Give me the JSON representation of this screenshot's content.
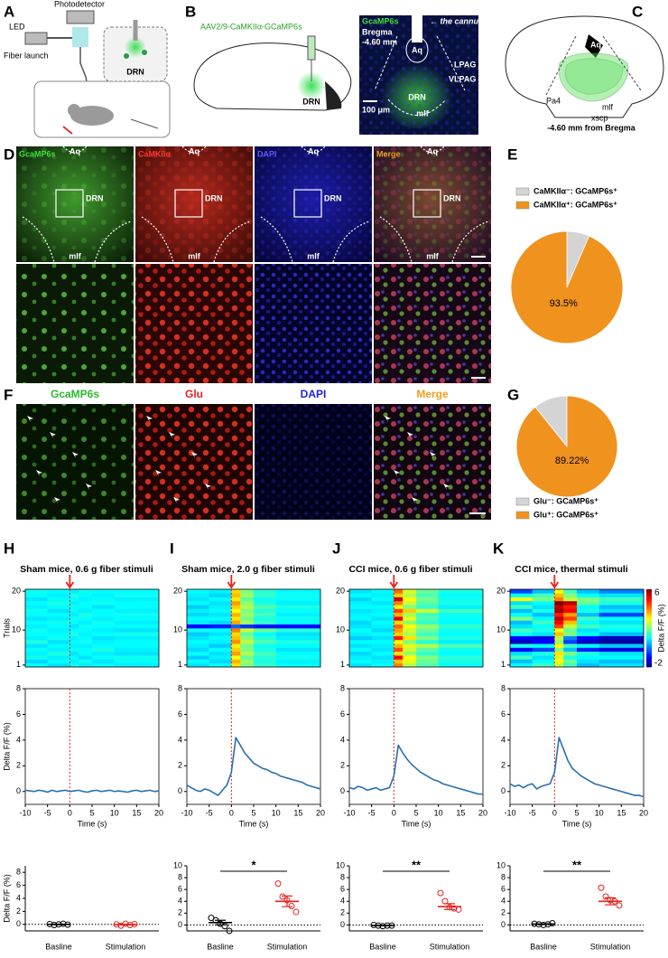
{
  "figure": {
    "panel_labels": [
      "A",
      "B",
      "C",
      "D",
      "E",
      "F",
      "G",
      "H",
      "I",
      "J",
      "K"
    ],
    "a": {
      "photodetector": "Photodetector",
      "led": "LED",
      "fiber_launch": "Fiber launch",
      "drn": "DRN"
    },
    "b": {
      "virus": "AAV2/9-CaMKIIα-GCaMP6s",
      "drn": "DRN",
      "stain": "GcaMP6s",
      "bregma": "Bregma",
      "level": "-4.60 mm",
      "cannula": "← the cannula",
      "aq": "Aq",
      "lpag": "LPAG",
      "vlpag": "VLPAG",
      "mlf": "mlf",
      "scale": "100 μm"
    },
    "c": {
      "aq": "Aq",
      "pa4": "Pa4",
      "mlf": "mlf",
      "xscp": "xscp",
      "level": "-4.60 mm from Bregma"
    },
    "d": {
      "channels": [
        "GcaMP6s",
        "CaMKIIα",
        "DAPI",
        "Merge"
      ],
      "aq": "Aq",
      "drn": "DRN",
      "mlf": "mlf"
    },
    "f": {
      "channels": [
        "GcaMP6s",
        "Glu",
        "DAPI",
        "Merge"
      ]
    }
  },
  "chart_data": [
    {
      "type": "pie",
      "categories": [
        "CaMKIIα⁻: GCaMP6s⁺",
        "CaMKIIα⁺: GCaMP6s⁺"
      ],
      "values": [
        6.5,
        93.5
      ],
      "value_labels": [
        null,
        "93.5%"
      ],
      "colors": [
        "#d4d4d4",
        "#f0921e"
      ],
      "direction": "clockwise"
    },
    {
      "type": "pie",
      "categories": [
        "Glu⁻: GCaMP6s⁺",
        "Glu⁺: GCaMP6s⁺"
      ],
      "values": [
        10.78,
        89.22
      ],
      "value_labels": [
        null,
        "89.22%"
      ],
      "colors": [
        "#d4d4d4",
        "#f0921e"
      ],
      "direction": "counterclockwise"
    },
    {
      "type": "heatmap",
      "title": "Sham mice, 0.6 g fiber stimuli",
      "y_label": "Trials",
      "ylim": [
        1,
        20
      ],
      "yticks": [
        1,
        10,
        20
      ],
      "xlim": [
        -10,
        20
      ],
      "xbins": [
        -10,
        -5,
        0,
        2,
        5,
        10,
        20
      ],
      "zlim": [
        -2,
        6
      ],
      "stimulus_x": 0,
      "z": [
        [
          1,
          0.8,
          1.1,
          0.9,
          1,
          0.9
        ],
        [
          0.7,
          1,
          0.9,
          1.1,
          0.8,
          1
        ],
        [
          1.1,
          0.9,
          1,
          0.8,
          1,
          1.1
        ],
        [
          0.9,
          1.2,
          0.8,
          1,
          0.9,
          0.8
        ],
        [
          1,
          0.9,
          1.1,
          1,
          1.2,
          0.9
        ],
        [
          0.8,
          1,
          0.9,
          0.9,
          1,
          1
        ],
        [
          1.2,
          0.8,
          1,
          1.1,
          0.9,
          1
        ],
        [
          0.9,
          1.1,
          0.9,
          1,
          0.8,
          0.9
        ],
        [
          1,
          1,
          1.2,
          0.9,
          1,
          1.1
        ],
        [
          1.1,
          0.9,
          1,
          1,
          0.9,
          0.8
        ],
        [
          0.9,
          1,
          0.8,
          1.1,
          1,
          1
        ],
        [
          1,
          1.1,
          1,
          0.9,
          1.1,
          0.9
        ],
        [
          0.8,
          0.9,
          1.1,
          1,
          0.9,
          1
        ],
        [
          1,
          1,
          0.9,
          1.2,
          1,
          1.1
        ],
        [
          1.1,
          0.8,
          1,
          0.9,
          1,
          0.9
        ],
        [
          0.9,
          1,
          1.1,
          1,
          0.8,
          1
        ],
        [
          1,
          1.2,
          0.9,
          1,
          1.1,
          1
        ],
        [
          0.8,
          1,
          1,
          0.9,
          1,
          0.9
        ],
        [
          1,
          0.9,
          1.2,
          1,
          0.9,
          1.1
        ],
        [
          1.1,
          1,
          0.9,
          1.1,
          1,
          1
        ]
      ]
    },
    {
      "type": "heatmap",
      "title": "Sham mice, 2.0 g fiber stimuli",
      "ylim": [
        1,
        20
      ],
      "yticks": [
        1,
        10,
        20
      ],
      "xlim": [
        -10,
        20
      ],
      "xbins": [
        -10,
        -5,
        0,
        2,
        5,
        10,
        20
      ],
      "zlim": [
        -2,
        6
      ],
      "stimulus_x": 0,
      "z": [
        [
          0.8,
          1,
          3.2,
          2,
          1.4,
          1
        ],
        [
          1,
          0.7,
          3.6,
          2.2,
          1.2,
          0.9
        ],
        [
          0.6,
          0.9,
          3,
          1.8,
          1.3,
          1.1
        ],
        [
          1,
          0.8,
          3.8,
          2.4,
          1.5,
          1
        ],
        [
          0.7,
          1,
          3.4,
          2,
          1.2,
          0.8
        ],
        [
          0.9,
          0.6,
          3.1,
          1.9,
          1.1,
          1
        ],
        [
          1,
          0.9,
          3.9,
          2.5,
          1.6,
          1.2
        ],
        [
          0.8,
          1,
          3.5,
          2.1,
          1.3,
          0.9
        ],
        [
          0.6,
          0.8,
          3.3,
          1.7,
          1,
          0.8
        ],
        [
          1.1,
          1,
          4,
          2.6,
          1.8,
          1.3
        ],
        [
          -1,
          -0.8,
          -0.2,
          -0.6,
          -0.9,
          -1
        ],
        [
          0.9,
          0.7,
          3.7,
          2.3,
          1.4,
          1
        ],
        [
          1,
          1,
          3.2,
          1.9,
          1.2,
          1.1
        ],
        [
          0.7,
          0.8,
          3.6,
          2.2,
          1.5,
          0.9
        ],
        [
          0.9,
          1,
          3,
          2,
          1.3,
          1
        ],
        [
          0.6,
          0.9,
          3.4,
          2.4,
          1.6,
          1.2
        ],
        [
          1,
          0.8,
          3.8,
          2.1,
          1.2,
          0.9
        ],
        [
          0.8,
          1,
          3.1,
          1.8,
          1.1,
          1
        ],
        [
          0.9,
          0.7,
          3.5,
          2.2,
          1.4,
          1.1
        ],
        [
          1,
          0.9,
          3.3,
          2,
          1.3,
          1
        ]
      ]
    },
    {
      "type": "heatmap",
      "title": "CCI mice, 0.6 g fiber stimuli",
      "ylim": [
        1,
        20
      ],
      "yticks": [
        1,
        10,
        20
      ],
      "xlim": [
        -10,
        20
      ],
      "xbins": [
        -10,
        -5,
        0,
        2,
        5,
        10,
        20
      ],
      "zlim": [
        -2,
        6
      ],
      "stimulus_x": 0,
      "z": [
        [
          0.8,
          1,
          4,
          2.4,
          1.6,
          1
        ],
        [
          1,
          0.9,
          3.5,
          2.8,
          1.8,
          1.2
        ],
        [
          0.9,
          0.8,
          5,
          3,
          2,
          1.3
        ],
        [
          0.7,
          1,
          3.2,
          2.2,
          1.4,
          1
        ],
        [
          1,
          0.8,
          4.4,
          2.6,
          1.7,
          1.1
        ],
        [
          0.8,
          0.9,
          3.6,
          2.8,
          2.4,
          1.6
        ],
        [
          1,
          1,
          3,
          2,
          1.3,
          0.9
        ],
        [
          0.6,
          0.8,
          4.8,
          3.2,
          2,
          1.2
        ],
        [
          0.9,
          1,
          3.4,
          2.4,
          1.5,
          1
        ],
        [
          1,
          0.7,
          3.8,
          2.6,
          1.8,
          1.1
        ],
        [
          0.8,
          0.9,
          4.2,
          3,
          2.2,
          1.4
        ],
        [
          0.7,
          1,
          3.3,
          2.1,
          1.4,
          1
        ],
        [
          1,
          0.8,
          5.2,
          2.8,
          1.6,
          1
        ],
        [
          0.9,
          1,
          3.6,
          2.3,
          1.5,
          1.1
        ],
        [
          0.8,
          0.9,
          4.5,
          3.4,
          2.6,
          1.5
        ],
        [
          1,
          1,
          3.1,
          2,
          1.4,
          0.9
        ],
        [
          0.9,
          0.8,
          4,
          2.6,
          1.7,
          1.2
        ],
        [
          0.7,
          1,
          5.4,
          3,
          1.9,
          1.1
        ],
        [
          1,
          0.9,
          3.4,
          2.4,
          1.6,
          1
        ],
        [
          0.8,
          1,
          4.2,
          2.7,
          1.8,
          1.2
        ]
      ]
    },
    {
      "type": "heatmap",
      "title": "CCI mice, thermal stimuli",
      "ylim": [
        1,
        20
      ],
      "yticks": [
        1,
        10,
        20
      ],
      "xlim": [
        -10,
        20
      ],
      "xbins": [
        -10,
        -5,
        0,
        2,
        5,
        10,
        20
      ],
      "zlim": [
        -2,
        6
      ],
      "zticks": [
        -2,
        6
      ],
      "z_label": "Delta F/F (%)",
      "stimulus_x": 0,
      "z": [
        [
          1,
          1.5,
          2.5,
          1.5,
          0.5,
          0.8
        ],
        [
          0.5,
          1,
          3,
          1.8,
          0.8,
          0.5
        ],
        [
          1.5,
          0.8,
          2.8,
          1.2,
          1,
          1
        ],
        [
          0.8,
          1.2,
          3.2,
          2,
          1.2,
          0.8
        ],
        [
          -1,
          -0.5,
          2,
          0.5,
          -0.8,
          -1.2
        ],
        [
          1.2,
          1,
          3,
          1.5,
          1,
          0.6
        ],
        [
          -1.5,
          -1,
          2.2,
          -0.5,
          -1.5,
          -1.8
        ],
        [
          -1,
          -1.2,
          2.5,
          0,
          -1,
          -1.5
        ],
        [
          1,
          0.8,
          3.5,
          2,
          1,
          0.5
        ],
        [
          1.5,
          1.2,
          3,
          1.8,
          0.8,
          1
        ],
        [
          0.8,
          1,
          4.5,
          2.5,
          1.5,
          1.2
        ],
        [
          0.5,
          1.5,
          5,
          3.5,
          1,
          0.8
        ],
        [
          2,
          1,
          5.5,
          4.5,
          1.5,
          1
        ],
        [
          1,
          0.5,
          4.8,
          3.8,
          0.5,
          -0.5
        ],
        [
          0.5,
          1.2,
          5.8,
          5,
          1.2,
          0.8
        ],
        [
          1.5,
          0.8,
          5.5,
          4.8,
          1,
          0.5
        ],
        [
          0.8,
          1,
          6,
          5.5,
          1.8,
          1.2
        ],
        [
          3,
          2,
          4,
          2.5,
          2,
          1.5
        ],
        [
          1,
          1.5,
          3.5,
          2,
          1,
          0.8
        ],
        [
          -0.5,
          0.5,
          3,
          1.5,
          0.5,
          0
        ]
      ]
    },
    {
      "type": "line",
      "x_label": "Time (s)",
      "y_label": "Delta F/F (%)",
      "xlim": [
        -10,
        20
      ],
      "xticks": [
        -10,
        -5,
        0,
        5,
        10,
        15,
        20
      ],
      "ylim": [
        -1,
        8
      ],
      "yticks": [
        0,
        2,
        4,
        6,
        8
      ],
      "color": "#2a6fb0",
      "stimulus_x": 0,
      "x": [
        -10,
        -9,
        -8,
        -7,
        -6,
        -5,
        -4,
        -3,
        -2,
        -1,
        0,
        1,
        2,
        3,
        4,
        5,
        6,
        7,
        8,
        9,
        10,
        11,
        12,
        13,
        14,
        15,
        16,
        17,
        18,
        19,
        20
      ],
      "values": [
        0.1,
        0.05,
        0,
        0.1,
        0.05,
        -0.05,
        0.1,
        0,
        0.05,
        0.1,
        0,
        0.05,
        0.1,
        0,
        -0.05,
        0.05,
        0.1,
        0,
        0.05,
        0.1,
        0,
        0.05,
        0,
        -0.05,
        0.05,
        0.1,
        0,
        0.05,
        0.1,
        0,
        0.05
      ]
    },
    {
      "type": "line",
      "x_label": "Time (s)",
      "xlim": [
        -10,
        20
      ],
      "xticks": [
        -10,
        -5,
        0,
        5,
        10,
        15,
        20
      ],
      "ylim": [
        -1,
        8
      ],
      "yticks": [
        0,
        2,
        4,
        6,
        8
      ],
      "color": "#2a6fb0",
      "stimulus_x": 0,
      "x": [
        -10,
        -9,
        -8,
        -7,
        -6,
        -5,
        -4,
        -3,
        -2,
        -1,
        0,
        1,
        2,
        3,
        4,
        5,
        6,
        7,
        8,
        9,
        10,
        11,
        12,
        13,
        14,
        15,
        16,
        17,
        18,
        19,
        20
      ],
      "values": [
        0.5,
        0.3,
        0.1,
        0,
        0.2,
        0.1,
        -0.1,
        -0.3,
        0.1,
        0.5,
        1.5,
        4.2,
        3.6,
        3,
        2.6,
        2.2,
        2,
        1.8,
        1.7,
        1.5,
        1.4,
        1.2,
        1.1,
        1,
        0.9,
        0.8,
        0.7,
        0.5,
        0.4,
        0.3,
        0.2
      ]
    },
    {
      "type": "line",
      "x_label": "Time (s)",
      "xlim": [
        -10,
        20
      ],
      "xticks": [
        -10,
        -5,
        0,
        5,
        10,
        15,
        20
      ],
      "ylim": [
        -1,
        8
      ],
      "yticks": [
        0,
        2,
        4,
        6,
        8
      ],
      "color": "#2a6fb0",
      "stimulus_x": 0,
      "x": [
        -10,
        -9,
        -8,
        -7,
        -6,
        -5,
        -4,
        -3,
        -2,
        -1,
        0,
        1,
        2,
        3,
        4,
        5,
        6,
        7,
        8,
        9,
        10,
        11,
        12,
        13,
        14,
        15,
        16,
        17,
        18,
        19,
        20
      ],
      "values": [
        0.3,
        0.2,
        0.4,
        0.3,
        0.1,
        0.2,
        0.3,
        0.1,
        0.2,
        0.3,
        1.2,
        3.6,
        3,
        2.5,
        2.1,
        1.8,
        1.5,
        1.3,
        1.1,
        0.9,
        0.8,
        0.6,
        0.5,
        0.4,
        0.3,
        0.2,
        0.1,
        0,
        -0.1,
        -0.2,
        -0.2
      ]
    },
    {
      "type": "line",
      "x_label": "Time (s)",
      "xlim": [
        -10,
        20
      ],
      "xticks": [
        -10,
        -5,
        0,
        5,
        10,
        15,
        20
      ],
      "ylim": [
        -1,
        8
      ],
      "yticks": [
        0,
        2,
        4,
        6,
        8
      ],
      "color": "#2a6fb0",
      "stimulus_x": 0,
      "x": [
        -10,
        -9,
        -8,
        -7,
        -6,
        -5,
        -4,
        -3,
        -2,
        -1,
        0,
        1,
        2,
        3,
        4,
        5,
        6,
        7,
        8,
        9,
        10,
        11,
        12,
        13,
        14,
        15,
        16,
        17,
        18,
        19,
        20
      ],
      "values": [
        0.6,
        0.4,
        0.5,
        0.3,
        0.5,
        0.6,
        0.2,
        0.4,
        0.5,
        0.6,
        1.5,
        4.2,
        3.3,
        2.4,
        1.8,
        1.5,
        1.2,
        1,
        0.8,
        0.6,
        0.5,
        0.4,
        0.3,
        0.2,
        0.1,
        0,
        -0.1,
        -0.2,
        -0.3,
        -0.3,
        -0.4
      ]
    },
    {
      "type": "dot",
      "categories": [
        "Basline",
        "Stimulation"
      ],
      "y_label": "Delta F/F (%)",
      "ylim": [
        -1,
        9
      ],
      "yticks": [
        0,
        2,
        4,
        6,
        8
      ],
      "groups": [
        {
          "color": "#000000",
          "values": [
            0.05,
            -0.1,
            0,
            0.1,
            -0.05
          ],
          "mean": 0,
          "sem": 0.04
        },
        {
          "color": "#e8231f",
          "values": [
            0,
            -0.2,
            0.1,
            -0.1,
            0.05
          ],
          "mean": -0.03,
          "sem": 0.05
        }
      ]
    },
    {
      "type": "dot",
      "categories": [
        "Basline",
        "Stimulation"
      ],
      "ylim": [
        -1,
        10
      ],
      "yticks": [
        0,
        2,
        4,
        6,
        8,
        10
      ],
      "significance": "*",
      "groups": [
        {
          "color": "#000000",
          "values": [
            1.2,
            0.8,
            0.2,
            -0.2,
            -1
          ],
          "mean": 0.4,
          "sem": 0.4
        },
        {
          "color": "#e8231f",
          "values": [
            7,
            4.8,
            4.2,
            3.2,
            2.2
          ],
          "mean": 4,
          "sem": 0.9
        }
      ]
    },
    {
      "type": "dot",
      "categories": [
        "Basline",
        "Stimulation"
      ],
      "ylim": [
        -1,
        10
      ],
      "yticks": [
        0,
        2,
        4,
        6,
        8,
        10
      ],
      "significance": "**",
      "groups": [
        {
          "color": "#000000",
          "values": [
            0,
            -0.1,
            -0.2,
            -0.1,
            -0.1
          ],
          "mean": -0.1,
          "sem": 0.04
        },
        {
          "color": "#e8231f",
          "values": [
            5.4,
            4,
            3,
            2.8,
            2.6
          ],
          "mean": 3.1,
          "sem": 0.5
        }
      ]
    },
    {
      "type": "dot",
      "categories": [
        "Basline",
        "Stimulation"
      ],
      "ylim": [
        -1,
        10
      ],
      "yticks": [
        0,
        2,
        4,
        6,
        8,
        10
      ],
      "significance": "**",
      "groups": [
        {
          "color": "#000000",
          "values": [
            0.2,
            0.1,
            0,
            0.1,
            0.3
          ],
          "mean": 0.15,
          "sem": 0.05
        },
        {
          "color": "#e8231f",
          "values": [
            6.3,
            4.8,
            4.2,
            4,
            3.3
          ],
          "mean": 4,
          "sem": 0.6
        }
      ]
    }
  ]
}
